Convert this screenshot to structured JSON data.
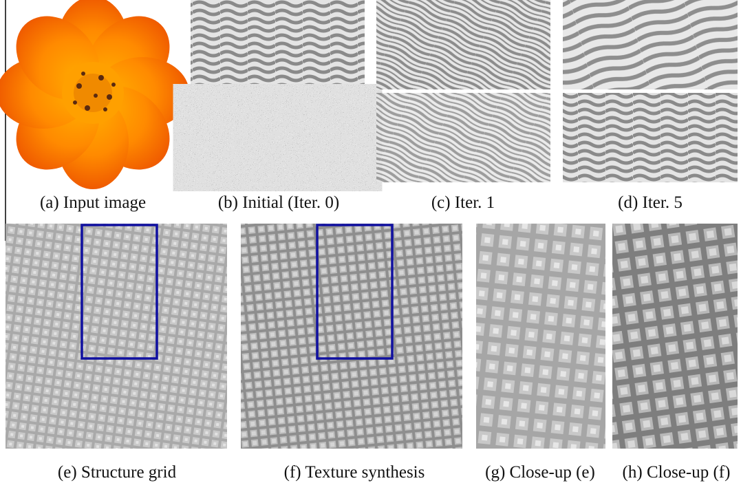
{
  "figure": {
    "captions": [
      "(a) Input image",
      "(b) Initial (Iter. 0)",
      "(c) Iter. 1",
      "(d) Iter. 5",
      "(e) Structure grid",
      "(f) Texture synthesis",
      "(g) Close-up (e)",
      "(h) Close-up (f)"
    ]
  }
}
